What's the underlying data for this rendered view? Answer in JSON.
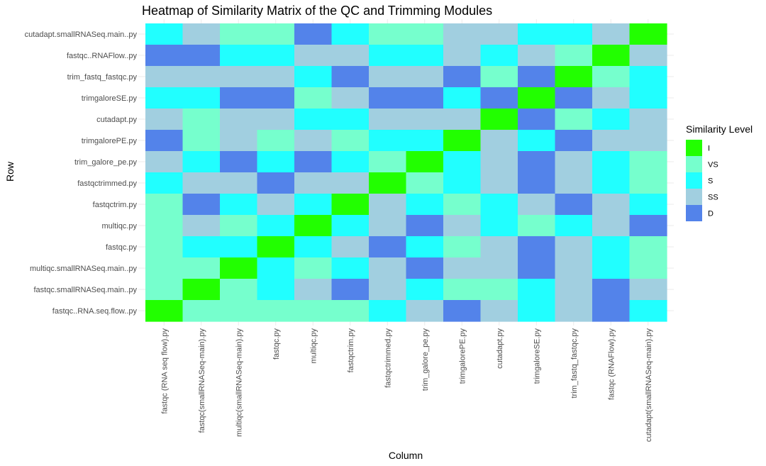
{
  "chart_data": {
    "type": "heatmap",
    "title": "Heatmap of Similarity Matrix of the QC and Trimming Modules",
    "xlabel": "Column",
    "ylabel": "Row",
    "x_categories": [
      "fastqc (RNA seq flow).py",
      "fastqc(smallRNASeq-main).py",
      "multiqc(smallRNASeq-main).py",
      "fastqc.py",
      "multiqc.py",
      "fastqctrim.py",
      "fastqctrimmed.py",
      "trim_galore_pe.py",
      "trimgalorePE.py",
      "cutadapt.py",
      "trimgaloreSE.py",
      "trim_fastq_fastqc.py",
      "fastqc (RNAFlow).py",
      "cutadapt(smallRNASeq-main).py"
    ],
    "y_categories": [
      "cutadapt.smallRNASeq.main..py",
      "fastqc..RNAFlow..py",
      "trim_fastq_fastqc.py",
      "trimgaloreSE.py",
      "cutadapt.py",
      "trimgalorePE.py",
      "trim_galore_pe.py",
      "fastqctrimmed.py",
      "fastqctrim.py",
      "multiqc.py",
      "fastqc.py",
      "multiqc.smallRNASeq.main..py",
      "fastqc.smallRNASeq.main..py",
      "fastqc..RNA.seq.flow..py"
    ],
    "values": [
      [
        "S",
        "SS",
        "VS",
        "VS",
        "D",
        "S",
        "VS",
        "VS",
        "SS",
        "SS",
        "S",
        "S",
        "SS",
        "I"
      ],
      [
        "D",
        "D",
        "S",
        "S",
        "SS",
        "SS",
        "S",
        "S",
        "SS",
        "S",
        "SS",
        "VS",
        "I",
        "SS"
      ],
      [
        "SS",
        "SS",
        "SS",
        "SS",
        "S",
        "D",
        "SS",
        "SS",
        "D",
        "VS",
        "D",
        "I",
        "VS",
        "S"
      ],
      [
        "S",
        "S",
        "D",
        "D",
        "VS",
        "SS",
        "D",
        "D",
        "S",
        "D",
        "I",
        "D",
        "SS",
        "S"
      ],
      [
        "SS",
        "VS",
        "SS",
        "SS",
        "S",
        "S",
        "SS",
        "SS",
        "SS",
        "I",
        "D",
        "VS",
        "S",
        "SS"
      ],
      [
        "D",
        "VS",
        "SS",
        "VS",
        "SS",
        "VS",
        "S",
        "S",
        "I",
        "SS",
        "S",
        "D",
        "SS",
        "SS"
      ],
      [
        "SS",
        "S",
        "D",
        "S",
        "D",
        "S",
        "VS",
        "I",
        "S",
        "SS",
        "D",
        "SS",
        "S",
        "VS"
      ],
      [
        "S",
        "SS",
        "SS",
        "D",
        "SS",
        "SS",
        "I",
        "VS",
        "S",
        "SS",
        "D",
        "SS",
        "S",
        "VS"
      ],
      [
        "VS",
        "D",
        "S",
        "SS",
        "S",
        "I",
        "SS",
        "S",
        "VS",
        "S",
        "SS",
        "D",
        "SS",
        "S"
      ],
      [
        "VS",
        "SS",
        "VS",
        "S",
        "I",
        "S",
        "SS",
        "D",
        "SS",
        "S",
        "VS",
        "S",
        "SS",
        "D"
      ],
      [
        "VS",
        "S",
        "S",
        "I",
        "S",
        "SS",
        "D",
        "S",
        "VS",
        "SS",
        "D",
        "SS",
        "S",
        "VS"
      ],
      [
        "VS",
        "VS",
        "I",
        "S",
        "VS",
        "S",
        "SS",
        "D",
        "SS",
        "SS",
        "D",
        "SS",
        "S",
        "VS"
      ],
      [
        "VS",
        "I",
        "VS",
        "S",
        "SS",
        "D",
        "SS",
        "S",
        "VS",
        "VS",
        "S",
        "SS",
        "D",
        "SS"
      ],
      [
        "I",
        "VS",
        "VS",
        "VS",
        "VS",
        "VS",
        "S",
        "SS",
        "D",
        "SS",
        "S",
        "SS",
        "D",
        "S"
      ]
    ],
    "legend": {
      "title": "Similarity Level",
      "position": "right",
      "levels": [
        "I",
        "VS",
        "S",
        "SS",
        "D"
      ]
    },
    "colors": {
      "I": "#22ff00",
      "VS": "#76ffcd",
      "S": "#21ffff",
      "SS": "#a1cfe0",
      "D": "#5383ea"
    },
    "grid": true
  }
}
